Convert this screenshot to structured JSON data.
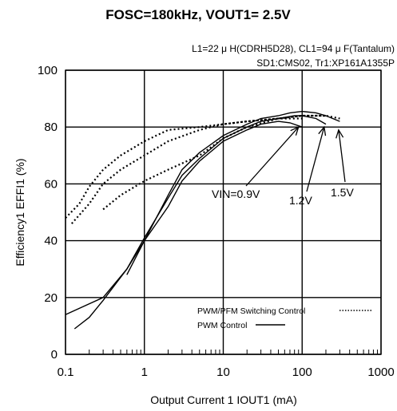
{
  "chart_data": {
    "type": "line",
    "title": "FOSC=180kHz, VOUT1= 2.5V",
    "subtitle_lines": [
      "L1=22 μ H(CDRH5D28), CL1=94 μ F(Tantalum)",
      "SD1:CMS02, Tr1:XP161A1355P"
    ],
    "xlabel": "Output Current 1 IOUT1 (mA)",
    "ylabel": "Efficiency1 EFFI1 (%)",
    "x_scale": "log",
    "xlim": [
      0.1,
      1000
    ],
    "ylim": [
      0,
      100
    ],
    "x_ticks": [
      0.1,
      1,
      10,
      100,
      1000
    ],
    "x_tick_labels": [
      "0.1",
      "1",
      "10",
      "100",
      "1000"
    ],
    "y_ticks": [
      0,
      20,
      40,
      60,
      80,
      100
    ],
    "y_tick_labels": [
      "0",
      "20",
      "40",
      "60",
      "80",
      "100"
    ],
    "grid": true,
    "legend": {
      "placement": "bottom-right",
      "entries": [
        {
          "label": "PWM/PFM Switching Control",
          "style": "dotted"
        },
        {
          "label": "PWM  Control",
          "style": "solid"
        }
      ]
    },
    "annotations": [
      {
        "text": "VIN=0.9V",
        "points_to_x": 90,
        "points_to_y": 80
      },
      {
        "text": "1.2V",
        "points_to_x": 190,
        "points_to_y": 80
      },
      {
        "text": "1.5V",
        "points_to_x": 290,
        "points_to_y": 79
      }
    ],
    "series": [
      {
        "style": "solid",
        "x": [
          0.1,
          0.3,
          0.6,
          1,
          2,
          3,
          5,
          10,
          20,
          30,
          50,
          70,
          100
        ],
        "y": [
          14,
          20,
          30,
          40,
          52,
          61,
          68,
          75,
          79,
          81,
          82,
          81.5,
          80
        ]
      },
      {
        "style": "solid",
        "x": [
          0.13,
          0.2,
          0.3,
          0.6,
          1,
          2,
          3,
          5,
          10,
          20,
          30,
          50,
          80,
          100,
          150,
          200
        ],
        "y": [
          9,
          13,
          19,
          30,
          41,
          55,
          63,
          69,
          76,
          80,
          82,
          83,
          84,
          84,
          83,
          81
        ]
      },
      {
        "style": "solid",
        "x": [
          0.6,
          1,
          2,
          3,
          5,
          10,
          20,
          30,
          50,
          70,
          100,
          150,
          200,
          300
        ],
        "y": [
          28,
          40,
          56,
          65,
          71,
          77,
          81,
          83,
          84,
          85,
          85.5,
          85,
          84,
          82
        ]
      },
      {
        "style": "dotted",
        "x": [
          0.1,
          0.15,
          0.2,
          0.3,
          0.5,
          1,
          2,
          5,
          10,
          20,
          50,
          100
        ],
        "y": [
          48,
          53,
          59,
          65,
          70,
          75,
          79,
          80,
          81,
          82,
          83,
          83
        ]
      },
      {
        "style": "dotted",
        "x": [
          0.12,
          0.2,
          0.3,
          0.5,
          1,
          2,
          5,
          10,
          20,
          50,
          100,
          200
        ],
        "y": [
          46,
          53,
          60,
          65,
          70,
          75,
          79,
          81,
          82,
          83,
          84,
          84
        ]
      },
      {
        "style": "dotted",
        "x": [
          0.3,
          0.5,
          1,
          2,
          5,
          10,
          20,
          50,
          100,
          200,
          300
        ],
        "y": [
          51,
          56,
          61,
          65,
          70,
          76,
          80,
          83,
          84,
          84,
          83
        ]
      }
    ]
  }
}
